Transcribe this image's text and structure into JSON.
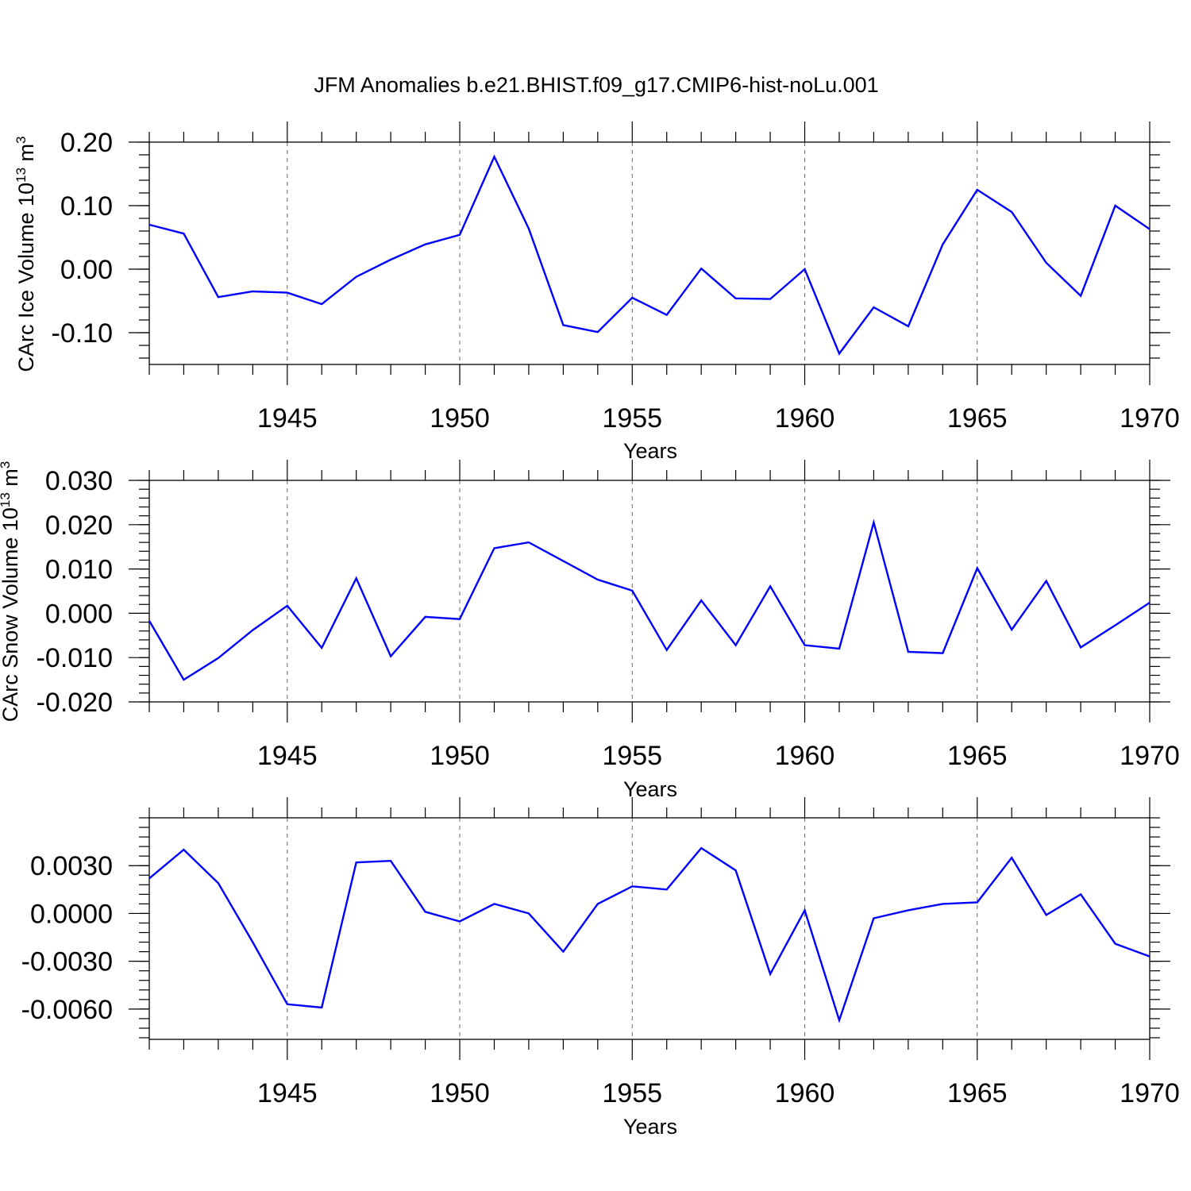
{
  "title": "JFM Anomalies b.e21.BHIST.f09_g17.CMIP6-hist-noLu.001",
  "line_color": "#0000ff",
  "chart_data": [
    {
      "type": "line",
      "title": "JFM Anomalies b.e21.BHIST.f09_g17.CMIP6-hist-noLu.001",
      "xlabel": "Years",
      "ylabel": "CArc Ice Volume",
      "ylabel_unit": "10",
      "ylabel_exp": "13",
      "ylabel_unit2": "m",
      "ylabel_exp2": "3",
      "xlim": [
        1941,
        1970
      ],
      "ylim": [
        -0.15,
        0.2
      ],
      "yticks": [
        -0.1,
        0.0,
        0.1,
        0.2
      ],
      "ytick_labels": [
        "-0.10",
        "0.00",
        "0.10",
        "0.20"
      ],
      "yminor_step": 0.02,
      "xticks": [
        1945,
        1950,
        1955,
        1960,
        1965,
        1970
      ],
      "xtick_labels": [
        "1945",
        "1950",
        "1955",
        "1960",
        "1965",
        "1970"
      ],
      "grid": "vertical dashed at major x ticks",
      "series": [
        {
          "x": [
            1941,
            1942,
            1943,
            1944,
            1945,
            1946,
            1947,
            1948,
            1949,
            1950,
            1951,
            1952,
            1953,
            1954,
            1955,
            1956,
            1957,
            1958,
            1959,
            1960,
            1961,
            1962,
            1963,
            1964,
            1965,
            1966,
            1967,
            1968,
            1969,
            1970
          ],
          "values": [
            0.07,
            0.056,
            -0.044,
            -0.035,
            -0.037,
            -0.055,
            -0.012,
            0.015,
            0.039,
            0.054,
            0.177,
            0.064,
            -0.088,
            -0.099,
            -0.045,
            -0.072,
            0.001,
            -0.046,
            -0.047,
            0.0,
            -0.133,
            -0.06,
            -0.09,
            0.039,
            0.125,
            0.09,
            0.01,
            -0.042,
            0.1,
            0.063
          ]
        }
      ]
    },
    {
      "type": "line",
      "xlabel": "Years",
      "ylabel": "CArc Snow Volume",
      "ylabel_unit": "10",
      "ylabel_exp": "13",
      "ylabel_unit2": "m",
      "ylabel_exp2": "3",
      "xlim": [
        1941,
        1970
      ],
      "ylim": [
        -0.02,
        0.03
      ],
      "yticks": [
        -0.02,
        -0.01,
        0.0,
        0.01,
        0.02,
        0.03
      ],
      "ytick_labels": [
        "-0.020",
        "-0.010",
        "0.000",
        "0.010",
        "0.020",
        "0.030"
      ],
      "yminor_step": 0.002,
      "xticks": [
        1945,
        1950,
        1955,
        1960,
        1965,
        1970
      ],
      "xtick_labels": [
        "1945",
        "1950",
        "1955",
        "1960",
        "1965",
        "1970"
      ],
      "grid": "vertical dashed at major x ticks",
      "series": [
        {
          "x": [
            1941,
            1942,
            1943,
            1944,
            1945,
            1946,
            1947,
            1948,
            1949,
            1950,
            1951,
            1952,
            1953,
            1954,
            1955,
            1956,
            1957,
            1958,
            1959,
            1960,
            1961,
            1962,
            1963,
            1964,
            1965,
            1966,
            1967,
            1968,
            1969,
            1970
          ],
          "values": [
            -0.0017,
            -0.015,
            -0.0101,
            -0.0038,
            0.0017,
            -0.0078,
            0.0079,
            -0.0097,
            -0.0008,
            -0.0013,
            0.0147,
            0.016,
            0.0118,
            0.0076,
            0.0051,
            -0.0083,
            0.0029,
            -0.0072,
            0.0061,
            -0.0072,
            -0.008,
            0.0205,
            -0.0087,
            -0.009,
            0.0102,
            -0.0037,
            0.0073,
            -0.0077,
            -0.0027,
            0.0024
          ]
        }
      ]
    },
    {
      "type": "line",
      "xlabel": "Years",
      "ylabel": "",
      "xlim": [
        1941,
        1970
      ],
      "ylim": [
        -0.0079,
        0.006
      ],
      "yticks": [
        -0.006,
        -0.003,
        0.0,
        0.003
      ],
      "ytick_labels": [
        "-0.0060",
        "-0.0030",
        "0.0000",
        "0.0030"
      ],
      "yminor_step": 0.0006,
      "xticks": [
        1945,
        1950,
        1955,
        1960,
        1965,
        1970
      ],
      "xtick_labels": [
        "1945",
        "1950",
        "1955",
        "1960",
        "1965",
        "1970"
      ],
      "grid": "vertical dashed at major x ticks",
      "series": [
        {
          "x": [
            1941,
            1942,
            1943,
            1944,
            1945,
            1946,
            1947,
            1948,
            1949,
            1950,
            1951,
            1952,
            1953,
            1954,
            1955,
            1956,
            1957,
            1958,
            1959,
            1960,
            1961,
            1962,
            1963,
            1964,
            1965,
            1966,
            1967,
            1968,
            1969,
            1970
          ],
          "values": [
            0.0022,
            0.004,
            0.0019,
            -0.0018,
            -0.0057,
            -0.0059,
            0.0032,
            0.0033,
            0.0001,
            -0.0005,
            0.0006,
            0.0,
            -0.0024,
            0.0006,
            0.0017,
            0.0015,
            0.0041,
            0.0027,
            -0.0038,
            0.0002,
            -0.0067,
            -0.0003,
            0.0002,
            0.0006,
            0.0007,
            0.0035,
            -0.0001,
            0.0012,
            -0.0019,
            -0.0027
          ]
        }
      ]
    }
  ]
}
